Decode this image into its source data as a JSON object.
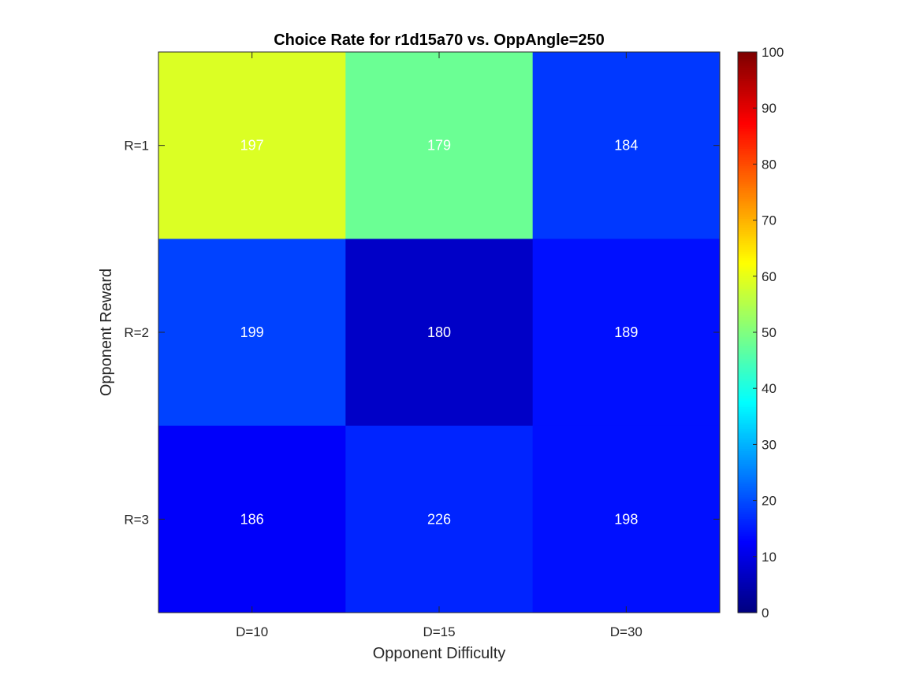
{
  "chart_data": {
    "type": "heatmap",
    "title": "Choice Rate for r1d15a70 vs. OppAngle=250",
    "xlabel": "Opponent Difficulty",
    "ylabel": "Opponent Reward",
    "x_categories": [
      "D=10",
      "D=15",
      "D=30"
    ],
    "y_categories": [
      "R=1",
      "R=2",
      "R=3"
    ],
    "values": [
      [
        59,
        48,
        18
      ],
      [
        19,
        7,
        14
      ],
      [
        12,
        16,
        14
      ]
    ],
    "cell_labels": [
      [
        "197",
        "179",
        "184"
      ],
      [
        "199",
        "180",
        "189"
      ],
      [
        "186",
        "226",
        "198"
      ]
    ],
    "colorbar": {
      "colormap": "jet",
      "range": [
        0,
        100
      ],
      "ticks": [
        "0",
        "10",
        "20",
        "30",
        "40",
        "50",
        "60",
        "70",
        "80",
        "90",
        "100"
      ]
    },
    "grid": false
  }
}
